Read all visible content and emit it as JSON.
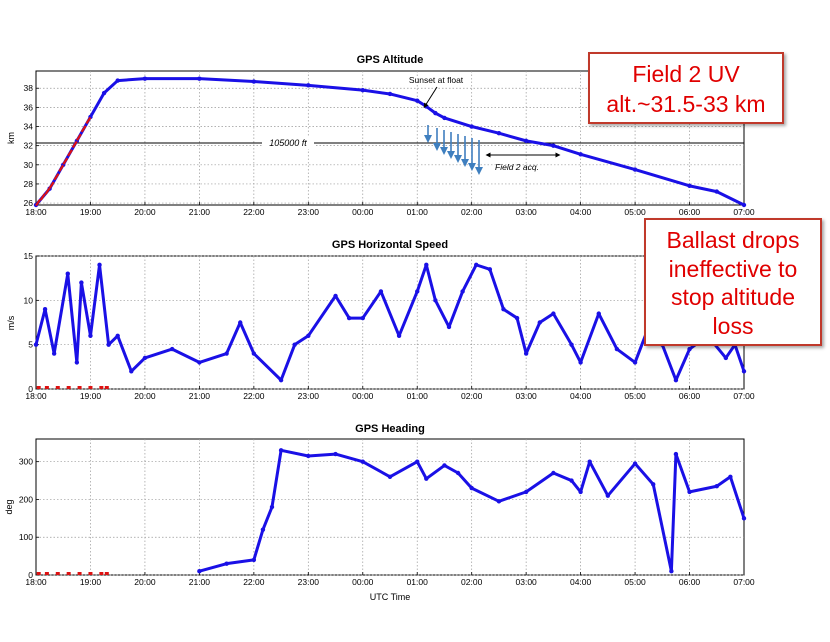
{
  "colors": {
    "series": "#1a10e6",
    "highlight": "#dd1111",
    "arrows": "#3f7fbf",
    "callout_text": "#e00000",
    "callout_border": "#c0392b"
  },
  "chart_data": [
    {
      "type": "scatter",
      "title": "GPS Altitude",
      "ylabel": "km",
      "xlim": [
        "18:00",
        "07:00"
      ],
      "ylim": [
        25.8,
        39.8
      ],
      "xticks": [
        "18:00",
        "19:00",
        "20:00",
        "21:00",
        "22:00",
        "23:00",
        "00:00",
        "01:00",
        "02:00",
        "03:00",
        "04:00",
        "05:00",
        "06:00",
        "07:00"
      ],
      "yticks": [
        26,
        28,
        30,
        32,
        34,
        36,
        38
      ],
      "grid": true,
      "series": [
        {
          "points": [
            [
              "18:00",
              25.8
            ],
            [
              "18:15",
              27.5
            ],
            [
              "18:30",
              30
            ],
            [
              "18:45",
              32.5
            ],
            [
              "19:00",
              35
            ],
            [
              "19:15",
              37.5
            ],
            [
              "19:30",
              38.8
            ],
            [
              "20:00",
              39
            ],
            [
              "21:00",
              39
            ],
            [
              "22:00",
              38.7
            ],
            [
              "23:00",
              38.3
            ],
            [
              "00:00",
              37.8
            ],
            [
              "00:30",
              37.4
            ],
            [
              "01:00",
              36.7
            ],
            [
              "01:10",
              36.1
            ],
            [
              "01:20",
              35.4
            ],
            [
              "01:30",
              34.9
            ],
            [
              "02:00",
              34
            ],
            [
              "02:30",
              33.3
            ],
            [
              "03:00",
              32.5
            ],
            [
              "03:30",
              32
            ],
            [
              "04:00",
              31.1
            ],
            [
              "05:00",
              29.5
            ],
            [
              "06:00",
              27.8
            ],
            [
              "06:30",
              27.2
            ],
            [
              "07:00",
              25.8
            ]
          ]
        }
      ],
      "reference_line": {
        "y": 32,
        "label": "105000 ft"
      },
      "annotations": [
        "Sunset at float",
        "Field 2 acq."
      ]
    },
    {
      "type": "scatter",
      "title": "GPS Horizontal Speed",
      "ylabel": "m/s",
      "xlim": [
        "18:00",
        "07:00"
      ],
      "ylim": [
        0,
        15
      ],
      "xticks": [
        "18:00",
        "19:00",
        "20:00",
        "21:00",
        "22:00",
        "23:00",
        "00:00",
        "01:00",
        "02:00",
        "03:00",
        "04:00",
        "05:00",
        "06:00",
        "07:00"
      ],
      "yticks": [
        0,
        5,
        10,
        15
      ],
      "grid": true,
      "series": [
        {
          "points": [
            [
              "18:00",
              5
            ],
            [
              "18:10",
              9
            ],
            [
              "18:20",
              4
            ],
            [
              "18:35",
              13
            ],
            [
              "18:45",
              3
            ],
            [
              "18:50",
              12
            ],
            [
              "19:00",
              6
            ],
            [
              "19:10",
              14
            ],
            [
              "19:20",
              5
            ],
            [
              "19:30",
              6
            ],
            [
              "19:45",
              2
            ],
            [
              "20:00",
              3.5
            ],
            [
              "20:30",
              4.5
            ],
            [
              "21:00",
              3
            ],
            [
              "21:30",
              4
            ],
            [
              "21:45",
              7.5
            ],
            [
              "22:00",
              4
            ],
            [
              "22:30",
              1
            ],
            [
              "22:45",
              5
            ],
            [
              "23:00",
              6
            ],
            [
              "23:30",
              10.5
            ],
            [
              "23:45",
              8
            ],
            [
              "00:00",
              8
            ],
            [
              "00:20",
              11
            ],
            [
              "00:40",
              6
            ],
            [
              "01:00",
              11
            ],
            [
              "01:10",
              14
            ],
            [
              "01:20",
              10
            ],
            [
              "01:35",
              7
            ],
            [
              "01:50",
              11
            ],
            [
              "02:05",
              14
            ],
            [
              "02:20",
              13.5
            ],
            [
              "02:35",
              9
            ],
            [
              "02:50",
              8
            ],
            [
              "03:00",
              4
            ],
            [
              "03:15",
              7.5
            ],
            [
              "03:30",
              8.5
            ],
            [
              "03:50",
              5
            ],
            [
              "04:00",
              3
            ],
            [
              "04:20",
              8.5
            ],
            [
              "04:40",
              4.5
            ],
            [
              "05:00",
              3
            ],
            [
              "05:15",
              7
            ],
            [
              "05:30",
              5
            ],
            [
              "05:45",
              1
            ],
            [
              "06:00",
              4.5
            ],
            [
              "06:20",
              6
            ],
            [
              "06:40",
              3.5
            ],
            [
              "06:50",
              5
            ],
            [
              "07:00",
              2
            ]
          ]
        }
      ]
    },
    {
      "type": "scatter",
      "title": "GPS Heading",
      "ylabel": "deg",
      "xlabel": "UTC Time",
      "xlim": [
        "18:00",
        "07:00"
      ],
      "ylim": [
        0,
        360
      ],
      "xticks": [
        "18:00",
        "19:00",
        "20:00",
        "21:00",
        "22:00",
        "23:00",
        "00:00",
        "01:00",
        "02:00",
        "03:00",
        "04:00",
        "05:00",
        "06:00",
        "07:00"
      ],
      "yticks": [
        0,
        100,
        200,
        300
      ],
      "grid": true,
      "series": [
        {
          "points": [
            [
              "21:00",
              10
            ],
            [
              "21:30",
              30
            ],
            [
              "22:00",
              40
            ],
            [
              "22:10",
              120
            ],
            [
              "22:20",
              180
            ],
            [
              "22:30",
              330
            ],
            [
              "23:00",
              315
            ],
            [
              "23:30",
              320
            ],
            [
              "00:00",
              300
            ],
            [
              "00:30",
              260
            ],
            [
              "01:00",
              300
            ],
            [
              "01:10",
              255
            ],
            [
              "01:30",
              290
            ],
            [
              "01:45",
              270
            ],
            [
              "02:00",
              230
            ],
            [
              "02:30",
              195
            ],
            [
              "03:00",
              220
            ],
            [
              "03:30",
              270
            ],
            [
              "03:50",
              250
            ],
            [
              "04:00",
              220
            ],
            [
              "04:10",
              300
            ],
            [
              "04:30",
              210
            ],
            [
              "05:00",
              295
            ],
            [
              "05:20",
              240
            ],
            [
              "05:40",
              10
            ],
            [
              "05:45",
              320
            ],
            [
              "06:00",
              220
            ],
            [
              "06:30",
              235
            ],
            [
              "06:45",
              260
            ],
            [
              "07:00",
              150
            ]
          ]
        }
      ]
    }
  ],
  "callouts": {
    "field2": {
      "line1": "Field 2 UV",
      "line2": "alt.~31.5-33 km"
    },
    "ballast": {
      "line1": "Ballast drops",
      "line2": "ineffective to",
      "line3": "stop altitude",
      "line4": "loss"
    }
  }
}
